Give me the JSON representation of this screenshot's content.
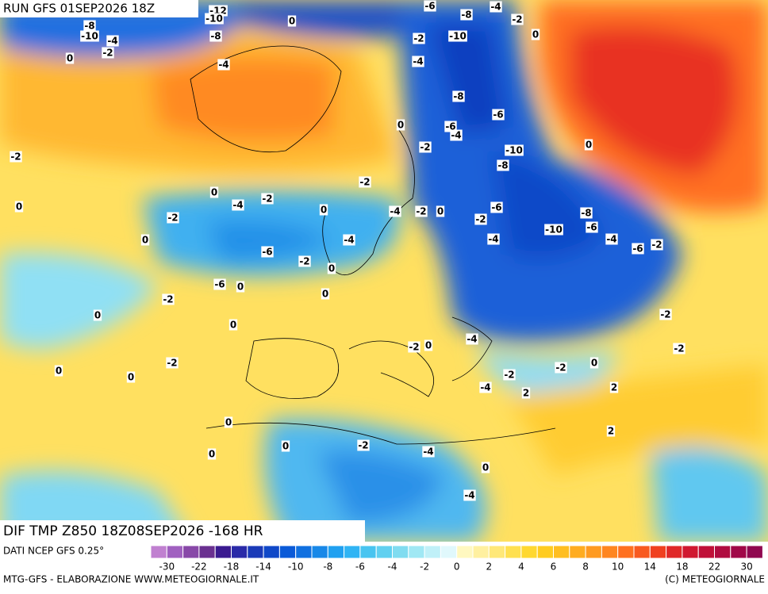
{
  "header": {
    "run": "RUN GFS 01SEP2026 18Z"
  },
  "map": {
    "field": "DIF TMP Z850 18Z08SEP2026 -168 HR",
    "labels": [
      -8,
      -10,
      -4,
      -2,
      0,
      -12,
      -10,
      -8,
      -4,
      -6,
      -8,
      -4,
      -2,
      -10,
      0,
      -2,
      0,
      -4,
      -8,
      -6,
      0,
      -6,
      -4,
      -2,
      0,
      -10,
      -8,
      0,
      -2,
      0,
      -2,
      -2,
      0,
      -4,
      -2,
      -4,
      -2,
      0,
      -6,
      -2,
      -4,
      -8,
      -6,
      -10,
      -4,
      -6,
      -2,
      -6,
      0,
      -4,
      0,
      -6,
      -2,
      0,
      -2,
      0,
      -2,
      -2,
      -4,
      -2,
      2,
      2,
      0,
      0,
      0,
      0,
      0,
      -2,
      -4,
      -4,
      -2,
      -2,
      0,
      2,
      -2,
      -4,
      0,
      0,
      0,
      0
    ]
  },
  "legend": {
    "source": "DATI NCEP GFS 0.25°",
    "colors": [
      "#c080d0",
      "#a060c0",
      "#8848a8",
      "#6a3090",
      "#3a1a90",
      "#2a2aa8",
      "#1a3ab8",
      "#1048c8",
      "#0a5ad8",
      "#1070e0",
      "#1888e8",
      "#20a0f0",
      "#30b4f4",
      "#48c4f0",
      "#60d0f0",
      "#80dcf0",
      "#a0e8f4",
      "#c0f0f8",
      "#e0f8fc",
      "#fff8c0",
      "#fff0a0",
      "#ffe878",
      "#ffe050",
      "#ffd830",
      "#ffcc20",
      "#ffbe20",
      "#ffac20",
      "#ff9a20",
      "#ff8620",
      "#ff7020",
      "#f85a20",
      "#f04020",
      "#e02828",
      "#d01830",
      "#c01038",
      "#b00c40",
      "#a00848",
      "#900850"
    ],
    "labels": [
      -30,
      -22,
      -18,
      -14,
      -10,
      -8,
      -6,
      -4,
      -2,
      0,
      2,
      4,
      6,
      8,
      10,
      14,
      18,
      22,
      30
    ]
  },
  "footer": {
    "left": "MTG-GFS - ELABORAZIONE WWW.METEOGIORNALE.IT",
    "right": "(C) METEOGIORNALE"
  }
}
